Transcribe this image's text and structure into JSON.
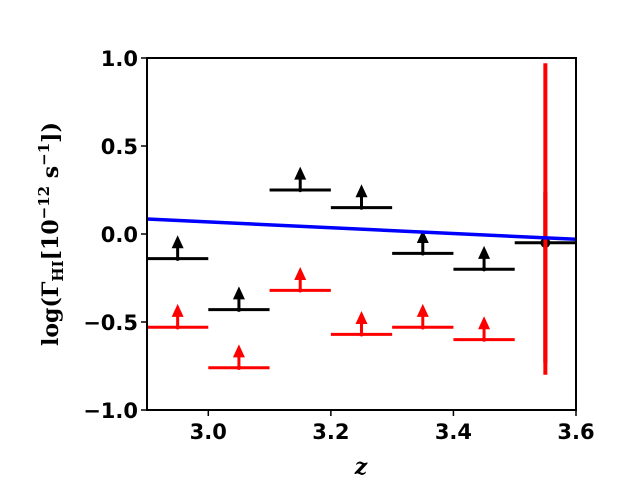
{
  "chart_data": {
    "type": "scatter",
    "xlabel": "z",
    "ylabel": "log(Γ",
    "ylabel_sub": "HI",
    "ylabel_unit_open": "[10",
    "ylabel_exp1": "−12",
    "ylabel_unit_mid": " s",
    "ylabel_exp2": "−1",
    "ylabel_unit_close": "])",
    "xlim": [
      2.9,
      3.6
    ],
    "ylim": [
      -1.0,
      1.0
    ],
    "xticks": [
      3.0,
      3.2,
      3.4,
      3.6
    ],
    "xtick_labels": [
      "3.0",
      "3.2",
      "3.4",
      "3.6"
    ],
    "yticks": [
      -1.0,
      -0.5,
      0.0,
      0.5,
      1.0
    ],
    "ytick_labels": [
      "−1.0",
      "−0.5",
      "0.0",
      "0.5",
      "1.0"
    ],
    "grid": false,
    "series": [
      {
        "color": "#000000",
        "marker": "lower-limit",
        "points": [
          {
            "x": 2.95,
            "xerr": 0.05,
            "y": -0.14
          },
          {
            "x": 3.05,
            "xerr": 0.05,
            "y": -0.43
          },
          {
            "x": 3.15,
            "xerr": 0.05,
            "y": 0.25
          },
          {
            "x": 3.25,
            "xerr": 0.05,
            "y": 0.15
          },
          {
            "x": 3.35,
            "xerr": 0.05,
            "y": -0.11
          },
          {
            "x": 3.45,
            "xerr": 0.05,
            "y": -0.2
          }
        ]
      },
      {
        "color": "#ff0000",
        "marker": "lower-limit",
        "points": [
          {
            "x": 2.95,
            "xerr": 0.05,
            "y": -0.53
          },
          {
            "x": 3.05,
            "xerr": 0.05,
            "y": -0.76
          },
          {
            "x": 3.15,
            "xerr": 0.05,
            "y": -0.32
          },
          {
            "x": 3.25,
            "xerr": 0.05,
            "y": -0.57
          },
          {
            "x": 3.35,
            "xerr": 0.05,
            "y": -0.53
          },
          {
            "x": 3.45,
            "xerr": 0.05,
            "y": -0.6
          }
        ]
      },
      {
        "color": "#000000",
        "marker": "point-with-errorbar",
        "points": [
          {
            "x": 3.55,
            "xerr": 0.05,
            "y": -0.05,
            "ylow": -0.73,
            "yhigh": 0.24
          }
        ]
      },
      {
        "color": "#ff0000",
        "marker": "errorbar",
        "points": [
          {
            "x": 3.55,
            "ylow": -0.8,
            "yhigh": 0.97
          }
        ]
      },
      {
        "color": "#0000ff",
        "marker": "line",
        "x": [
          2.9,
          3.6
        ],
        "y": [
          0.085,
          -0.03
        ]
      }
    ]
  }
}
